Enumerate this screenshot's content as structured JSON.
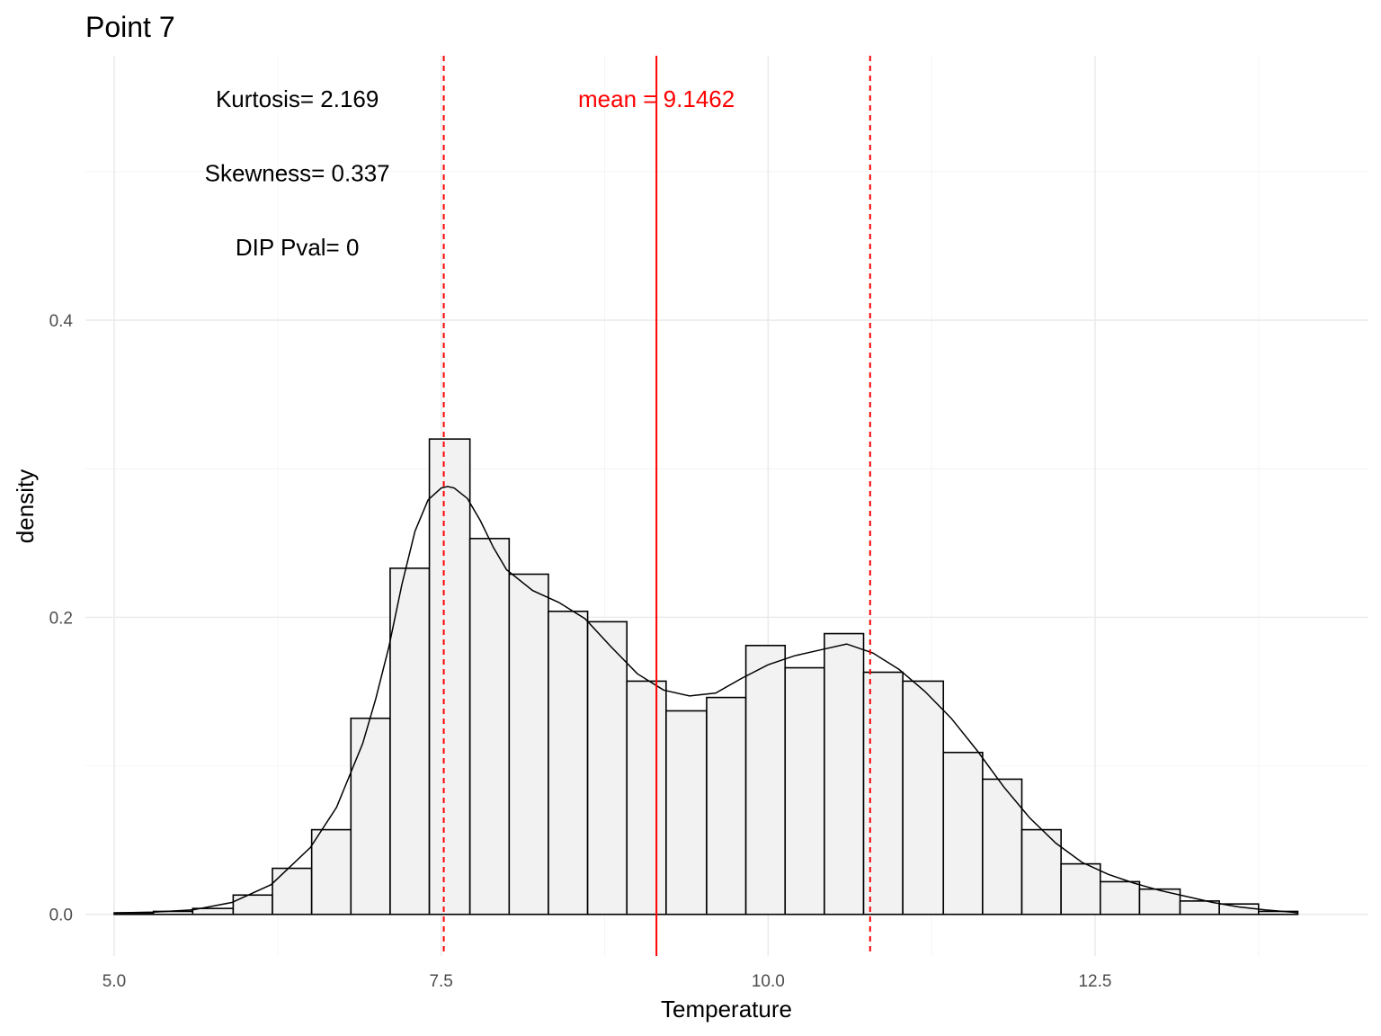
{
  "chart_data": {
    "type": "histogram",
    "title": "Point 7",
    "xlabel": "Temperature",
    "ylabel": "density",
    "xlim": [
      4.78,
      14.59
    ],
    "ylim": [
      -0.028,
      0.578
    ],
    "x_ticks": [
      {
        "value": 5.0,
        "label": "5.0"
      },
      {
        "value": 7.5,
        "label": "7.5"
      },
      {
        "value": 10.0,
        "label": "10.0"
      },
      {
        "value": 12.5,
        "label": "12.5"
      }
    ],
    "y_ticks": [
      {
        "value": 0.0,
        "label": "0.0"
      },
      {
        "value": 0.2,
        "label": "0.2"
      },
      {
        "value": 0.4,
        "label": "0.4"
      }
    ],
    "x_minor": [
      6.25,
      8.75,
      11.25,
      13.75
    ],
    "y_minor": [
      0.1,
      0.3,
      0.5
    ],
    "grid": true,
    "bins": [
      {
        "x0": 5.0,
        "x1": 5.3,
        "density": 0.001
      },
      {
        "x0": 5.3,
        "x1": 5.6,
        "density": 0.002
      },
      {
        "x0": 5.6,
        "x1": 5.91,
        "density": 0.004
      },
      {
        "x0": 5.91,
        "x1": 6.21,
        "density": 0.013
      },
      {
        "x0": 6.21,
        "x1": 6.51,
        "density": 0.031
      },
      {
        "x0": 6.51,
        "x1": 6.81,
        "density": 0.057
      },
      {
        "x0": 6.81,
        "x1": 7.11,
        "density": 0.132
      },
      {
        "x0": 7.11,
        "x1": 7.41,
        "density": 0.233
      },
      {
        "x0": 7.41,
        "x1": 7.72,
        "density": 0.32
      },
      {
        "x0": 7.72,
        "x1": 8.02,
        "density": 0.253
      },
      {
        "x0": 8.02,
        "x1": 8.32,
        "density": 0.229
      },
      {
        "x0": 8.32,
        "x1": 8.62,
        "density": 0.204
      },
      {
        "x0": 8.62,
        "x1": 8.92,
        "density": 0.197
      },
      {
        "x0": 8.92,
        "x1": 9.22,
        "density": 0.157
      },
      {
        "x0": 9.22,
        "x1": 9.53,
        "density": 0.137
      },
      {
        "x0": 9.53,
        "x1": 9.83,
        "density": 0.146
      },
      {
        "x0": 9.83,
        "x1": 10.13,
        "density": 0.181
      },
      {
        "x0": 10.13,
        "x1": 10.43,
        "density": 0.166
      },
      {
        "x0": 10.43,
        "x1": 10.73,
        "density": 0.189
      },
      {
        "x0": 10.73,
        "x1": 11.03,
        "density": 0.163
      },
      {
        "x0": 11.03,
        "x1": 11.34,
        "density": 0.157
      },
      {
        "x0": 11.34,
        "x1": 11.64,
        "density": 0.109
      },
      {
        "x0": 11.64,
        "x1": 11.94,
        "density": 0.091
      },
      {
        "x0": 11.94,
        "x1": 12.24,
        "density": 0.057
      },
      {
        "x0": 12.24,
        "x1": 12.54,
        "density": 0.034
      },
      {
        "x0": 12.54,
        "x1": 12.84,
        "density": 0.022
      },
      {
        "x0": 12.84,
        "x1": 13.15,
        "density": 0.017
      },
      {
        "x0": 13.15,
        "x1": 13.45,
        "density": 0.009
      },
      {
        "x0": 13.45,
        "x1": 13.75,
        "density": 0.007
      },
      {
        "x0": 13.75,
        "x1": 14.05,
        "density": 0.002
      }
    ],
    "density_curve": [
      [
        5.0,
        0.001
      ],
      [
        5.3,
        0.0015
      ],
      [
        5.6,
        0.003
      ],
      [
        5.9,
        0.008
      ],
      [
        6.2,
        0.02
      ],
      [
        6.5,
        0.045
      ],
      [
        6.7,
        0.072
      ],
      [
        6.9,
        0.115
      ],
      [
        7.0,
        0.145
      ],
      [
        7.1,
        0.18
      ],
      [
        7.2,
        0.222
      ],
      [
        7.3,
        0.258
      ],
      [
        7.4,
        0.279
      ],
      [
        7.5,
        0.287
      ],
      [
        7.55,
        0.288
      ],
      [
        7.6,
        0.287
      ],
      [
        7.7,
        0.28
      ],
      [
        7.8,
        0.265
      ],
      [
        7.9,
        0.247
      ],
      [
        8.0,
        0.232
      ],
      [
        8.2,
        0.218
      ],
      [
        8.4,
        0.21
      ],
      [
        8.6,
        0.199
      ],
      [
        8.8,
        0.18
      ],
      [
        9.0,
        0.162
      ],
      [
        9.2,
        0.151
      ],
      [
        9.4,
        0.147
      ],
      [
        9.6,
        0.149
      ],
      [
        9.8,
        0.159
      ],
      [
        10.0,
        0.168
      ],
      [
        10.2,
        0.174
      ],
      [
        10.4,
        0.178
      ],
      [
        10.6,
        0.182
      ],
      [
        10.8,
        0.176
      ],
      [
        11.0,
        0.165
      ],
      [
        11.2,
        0.15
      ],
      [
        11.4,
        0.132
      ],
      [
        11.6,
        0.11
      ],
      [
        11.8,
        0.086
      ],
      [
        12.0,
        0.065
      ],
      [
        12.2,
        0.048
      ],
      [
        12.4,
        0.035
      ],
      [
        12.6,
        0.027
      ],
      [
        12.8,
        0.021
      ],
      [
        13.0,
        0.016
      ],
      [
        13.2,
        0.012
      ],
      [
        13.4,
        0.008
      ],
      [
        13.6,
        0.005
      ],
      [
        13.8,
        0.003
      ],
      [
        14.0,
        0.0015
      ],
      [
        14.05,
        0.001
      ]
    ],
    "vlines": [
      {
        "x": 9.1462,
        "style": "solid",
        "color": "#ff0000"
      },
      {
        "x": 7.52,
        "style": "dashed",
        "color": "#ff0000"
      },
      {
        "x": 10.78,
        "style": "dashed",
        "color": "#ff0000"
      }
    ],
    "annotations": [
      {
        "text": "Kurtosis= 2.169",
        "x": 6.4,
        "y": 0.549,
        "color": "#000000"
      },
      {
        "text": "Skewness= 0.337",
        "x": 6.4,
        "y": 0.499,
        "color": "#000000"
      },
      {
        "text": "DIP Pval= 0",
        "x": 6.4,
        "y": 0.449,
        "color": "#000000"
      },
      {
        "text": "mean = 9.1462",
        "x": 9.1462,
        "y": 0.549,
        "color": "#ff0000"
      }
    ]
  }
}
